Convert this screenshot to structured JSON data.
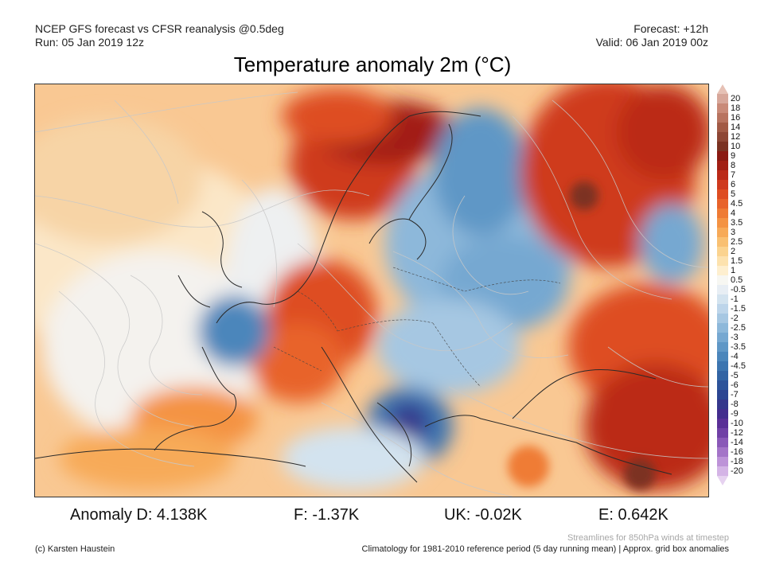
{
  "header": {
    "line1_left": "NCEP GFS forecast vs CFSR reanalysis @0.5deg",
    "line2_left": "Run: 05 Jan 2019 12z",
    "line1_right": "Forecast: +12h",
    "line2_right": "Valid: 06 Jan 2019 00z"
  },
  "title": "Temperature anomaly 2m (°C)",
  "colorbar": {
    "labels": [
      "20",
      "18",
      "16",
      "14",
      "12",
      "10",
      "9",
      "8",
      "7",
      "6",
      "5",
      "4.5",
      "4",
      "3.5",
      "3",
      "2.5",
      "2",
      "1.5",
      "1",
      "0.5",
      "-0.5",
      "-1",
      "-1.5",
      "-2",
      "-2.5",
      "-3",
      "-3.5",
      "-4",
      "-4.5",
      "-5",
      "-6",
      "-7",
      "-8",
      "-9",
      "-10",
      "-12",
      "-14",
      "-16",
      "-18",
      "-20"
    ],
    "colors": [
      "#d7a79a",
      "#c98a78",
      "#b8735f",
      "#a25a45",
      "#8e4634",
      "#7b3222",
      "#8b1a12",
      "#a21f14",
      "#bb2a18",
      "#cf3a1e",
      "#de4d22",
      "#e8632b",
      "#ef7b34",
      "#f49343",
      "#f7aa58",
      "#f9c072",
      "#fbd38f",
      "#fde2ae",
      "#feefcf",
      "#f7f7f2",
      "#e8eef4",
      "#d3e3ef",
      "#bdd5ea",
      "#a6c7e2",
      "#8db8da",
      "#76a8d1",
      "#5f97c6",
      "#4b86bb",
      "#3c75b0",
      "#3264a4",
      "#2d539a",
      "#2c4592",
      "#35378c",
      "#432d8e",
      "#5a2f97",
      "#7040a6",
      "#8a58b8",
      "#a474c8",
      "#bd93d8",
      "#d4b4e6"
    ]
  },
  "stats": {
    "d": "Anomaly D: 4.138K",
    "f": "F: -1.37K",
    "uk": "UK: -0.02K",
    "e": "E: 0.642K"
  },
  "footer": {
    "streamlines_note": "Streamlines for 850hPa winds at timestep",
    "credit": "(c) Karsten Haustein",
    "climatology_note": "Climatology for 1981-2010 reference period (5 day running mean) | Approx. grid box anomalies"
  }
}
